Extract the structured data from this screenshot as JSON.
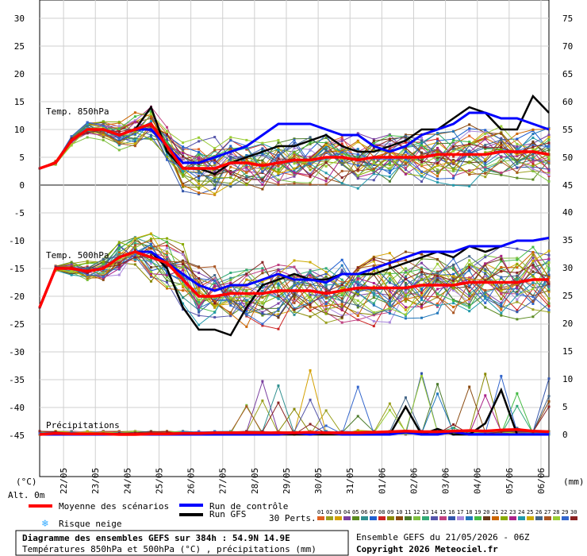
{
  "chart_data": {
    "type": "line",
    "left_axis_ticks": [
      "30",
      "25",
      "20",
      "15",
      "10",
      "5",
      "0",
      "-5",
      "-10",
      "-15",
      "-20",
      "-25",
      "-30",
      "-35",
      "-40",
      "-45"
    ],
    "right_axis_top_ticks": [
      "75",
      "70",
      "65",
      "60",
      "55",
      "50",
      "45"
    ],
    "right_axis_bottom_ticks": [
      "40",
      "35",
      "30",
      "25",
      "20",
      "15",
      "10",
      "5",
      "0"
    ],
    "left_unit": "(°C)",
    "right_unit": "(mm)",
    "altitude": "Alt. 0m",
    "x_ticks": [
      "22/05",
      "23/05",
      "24/05",
      "25/05",
      "26/05",
      "27/05",
      "28/05",
      "29/05",
      "30/05",
      "31/05",
      "01/06",
      "02/06",
      "03/06",
      "04/06",
      "05/06",
      "06/06"
    ],
    "x_hours": [
      18,
      42,
      66,
      90,
      114,
      138,
      162,
      186,
      210,
      234,
      258,
      282,
      306,
      330,
      354,
      378
    ],
    "x_range": [
      0,
      384
    ],
    "panels": {
      "t850": {
        "label": "Temp. 850hPa",
        "hours": [
          0,
          12,
          24,
          36,
          48,
          60,
          72,
          84,
          96,
          108,
          120,
          132,
          144,
          156,
          168,
          180,
          192,
          204,
          216,
          228,
          240,
          252,
          264,
          276,
          288,
          300,
          312,
          324,
          336,
          348,
          360,
          372,
          384
        ],
        "mean": [
          3,
          4,
          8,
          10,
          10,
          9,
          10,
          11,
          7,
          3,
          3,
          3,
          4,
          4,
          3.5,
          4,
          4.5,
          4.5,
          5,
          5,
          4.5,
          5,
          5,
          5,
          5,
          5.5,
          5.5,
          5.5,
          5.5,
          6,
          6,
          6,
          5.5
        ],
        "control": [
          3,
          4,
          8,
          10,
          10,
          9,
          10,
          10,
          7,
          4,
          4,
          5,
          6,
          7,
          9,
          11,
          11,
          11,
          10,
          9,
          9,
          7,
          6,
          7,
          9,
          10,
          11,
          13,
          13,
          12,
          12,
          11,
          10
        ],
        "gfs": [
          3,
          4,
          8,
          10,
          10,
          9,
          10,
          14,
          6,
          3,
          3,
          2,
          4,
          5,
          6,
          7,
          7,
          8,
          9,
          7,
          6,
          6,
          7,
          8,
          10,
          10,
          12,
          14,
          13,
          10,
          10,
          16,
          13
        ]
      },
      "t500": {
        "label": "Temp. 500hPa",
        "hours": [
          0,
          12,
          24,
          36,
          48,
          60,
          72,
          84,
          96,
          108,
          120,
          132,
          144,
          156,
          168,
          180,
          192,
          204,
          216,
          228,
          240,
          252,
          264,
          276,
          288,
          300,
          312,
          324,
          336,
          348,
          360,
          372,
          384
        ],
        "mean": [
          -22,
          -15,
          -15,
          -15.5,
          -15,
          -13,
          -12,
          -13,
          -14,
          -17,
          -20,
          -20,
          -19.5,
          -19.5,
          -19.5,
          -19,
          -19,
          -19,
          -19.5,
          -19,
          -18.5,
          -18.5,
          -18.5,
          -18.5,
          -18,
          -18,
          -18,
          -17.5,
          -17.5,
          -17.5,
          -17.5,
          -17,
          -17
        ],
        "control": [
          -22,
          -15,
          -15,
          -15.5,
          -15,
          -13,
          -12,
          -12,
          -14,
          -16,
          -18,
          -19,
          -18,
          -18,
          -17,
          -16,
          -17,
          -17,
          -17.5,
          -16,
          -16,
          -15,
          -14,
          -13,
          -12,
          -12,
          -12,
          -11,
          -11,
          -11,
          -10,
          -10,
          -9.5
        ],
        "gfs": [
          -22,
          -15,
          -15,
          -15.5,
          -15,
          -13,
          -12,
          -12,
          -15,
          -22,
          -26,
          -26,
          -27,
          -22,
          -18,
          -17,
          -16,
          -17,
          -17,
          -16,
          -16,
          -16,
          -15,
          -14,
          -13,
          -12,
          -13,
          -11,
          -12,
          -11,
          -10,
          -10,
          -9.5
        ]
      },
      "precip": {
        "label": "Précipitations",
        "hours": [
          0,
          12,
          24,
          36,
          48,
          60,
          72,
          84,
          96,
          108,
          120,
          132,
          144,
          156,
          168,
          180,
          192,
          204,
          216,
          228,
          240,
          252,
          264,
          276,
          288,
          300,
          312,
          324,
          336,
          348,
          360,
          372,
          384
        ],
        "mean": [
          0,
          0.2,
          0.1,
          0.1,
          0.1,
          0,
          0,
          0.1,
          0.1,
          0.2,
          0.2,
          0.3,
          0.3,
          0.3,
          0.3,
          0.3,
          0.3,
          0.4,
          0.3,
          0.3,
          0.3,
          0.4,
          0.5,
          0.6,
          0.5,
          0.5,
          0.6,
          0.7,
          0.6,
          0.8,
          0.9,
          0.6,
          0.5
        ],
        "control": [
          0,
          0,
          0,
          0,
          0,
          0,
          0,
          0,
          0,
          0,
          0,
          0,
          0,
          0,
          0,
          0,
          0.3,
          0,
          0.4,
          0,
          0,
          0,
          0,
          0.4,
          0,
          0,
          0.5,
          0,
          0,
          0,
          0,
          0,
          0
        ],
        "gfs": [
          0,
          0,
          0,
          0,
          0,
          0,
          0,
          0,
          0,
          0,
          0,
          0,
          0,
          0,
          0,
          0,
          0,
          0,
          0,
          0,
          0,
          0,
          0,
          5,
          0,
          1,
          0,
          0,
          2,
          8,
          0,
          0,
          0
        ]
      }
    },
    "legend": {
      "mean_label": "Moyenne des scénarios",
      "control_label": "Run de contrôle",
      "gfs_label": "Run GFS",
      "perts_label": "30 Perts.",
      "snow_label": "Risque neige",
      "pert_numbers": [
        "01",
        "02",
        "03",
        "04",
        "05",
        "06",
        "07",
        "08",
        "09",
        "10",
        "11",
        "12",
        "13",
        "14",
        "15",
        "16",
        "17",
        "18",
        "19",
        "20",
        "21",
        "22",
        "23",
        "24",
        "25",
        "26",
        "27",
        "28",
        "29",
        "30"
      ]
    },
    "colors": {
      "mean": "#ff0000",
      "control": "#0000ff",
      "gfs": "#000000",
      "snow": "#33aaff",
      "perts": [
        "#e06020",
        "#9aa01e",
        "#d4a000",
        "#7a3fa0",
        "#5a8a20",
        "#2f8f8f",
        "#1f5fd0",
        "#cc2222",
        "#888800",
        "#8a4a10",
        "#4a7a2a",
        "#7fbf3f",
        "#33aa77",
        "#5555aa",
        "#c04080",
        "#3355aa",
        "#aa88dd",
        "#2277bb",
        "#44bb44",
        "#6a3a1a",
        "#cc6600",
        "#88aa00",
        "#aa2288",
        "#2299aa",
        "#ccaa00",
        "#446688",
        "#aa5522",
        "#99cc33",
        "#3366cc",
        "#882222"
      ]
    },
    "title": "Diagramme des ensembles GEFS sur 384h : 54.9N 14.9E",
    "subtitle": "Températures 850hPa et 500hPa (°C) , précipitations (mm)",
    "run_info": "Ensemble GEFS du 21/05/2026 - 06Z",
    "copyright": "Copyright 2026 Meteociel.fr"
  }
}
